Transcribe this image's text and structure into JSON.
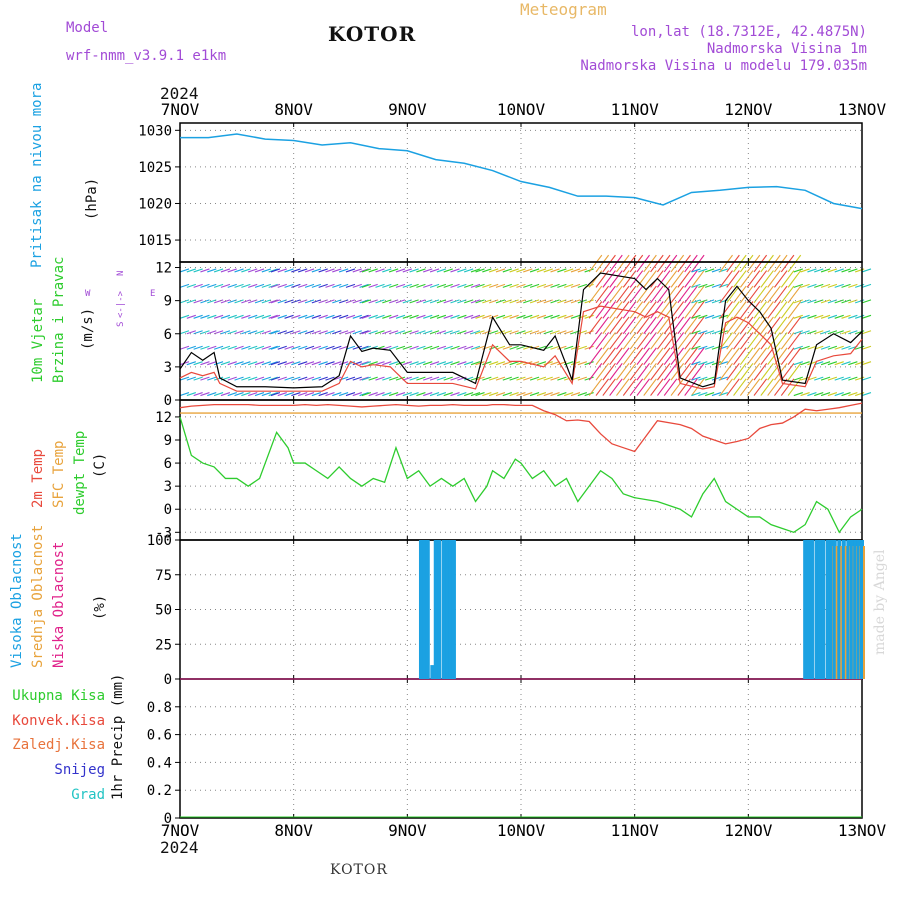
{
  "header": {
    "model_label": "Model",
    "model_name": "wrf-nmm_v3.9.1 e1km",
    "title": "KOTOR",
    "meteogram": "Meteogram",
    "lonlat": "lon,lat (18.7312E, 42.4875N)",
    "altitude": "Nadmorska Visina 1m",
    "model_altitude": "Nadmorska Visina u modelu 179.035m",
    "year_top": "2024",
    "year_bottom": "2024",
    "footer": "KOTOR",
    "credit": "made by Angel"
  },
  "colors": {
    "pressure": "#1ba1e2",
    "temp2m": "#e8493c",
    "sfc_temp": "#e8a33c",
    "dewpt": "#2ecc2e",
    "high_cloud": "#1ba1e2",
    "mid_cloud": "#e8a33c",
    "low_cloud": "#e0218a",
    "total_precip": "#2ecc2e",
    "conv_precip": "#e8493c",
    "frozen_precip": "#e8733c",
    "snow": "#3333cc",
    "hail": "#22c4c4",
    "wind_axis_label": "#a24bd6"
  },
  "panel_labels": {
    "pressure": [
      "Pritisak na nivou mora",
      "(hPa)"
    ],
    "wind": [
      "10m Vjetar",
      "Brzina i Pravac",
      "(m/s)"
    ],
    "compass": [
      "N",
      "W",
      "<-|->",
      "E",
      "S"
    ],
    "temp": [
      "2m Temp",
      "SFC Temp",
      "dewpt Temp",
      "(C)"
    ],
    "cloud": [
      "Visoka Oblacnost",
      "Srednja Oblacnost",
      "Niska Oblacnost",
      "(%)"
    ],
    "precip_legend": [
      "Ukupna Kisa",
      "Konvek.Kisa",
      "Zaledj.Kisa",
      "Snijeg",
      "Grad"
    ],
    "precip_unit": "1hr Precip (mm)"
  },
  "chart_data": [
    {
      "type": "line",
      "name": "pressure",
      "x_labels": [
        "7NOV",
        "8NOV",
        "9NOV",
        "10NOV",
        "11NOV",
        "12NOV",
        "13NOV"
      ],
      "ylim": [
        1012,
        1031
      ],
      "yticks": [
        1015,
        1020,
        1025,
        1030
      ],
      "x": [
        0,
        0.25,
        0.5,
        0.75,
        1,
        1.25,
        1.5,
        1.75,
        2,
        2.25,
        2.5,
        2.75,
        3,
        3.25,
        3.5,
        3.75,
        4,
        4.25,
        4.5,
        4.75,
        5,
        5.25,
        5.5,
        5.75,
        6
      ],
      "series": [
        {
          "values": [
            1029,
            1029,
            1029.5,
            1028.8,
            1028.6,
            1028,
            1028.3,
            1027.5,
            1027.2,
            1026,
            1025.5,
            1024.5,
            1023,
            1022.2,
            1021,
            1021,
            1020.8,
            1019.8,
            1021.5,
            1021.8,
            1022.2,
            1022.3,
            1021.8,
            1020,
            1019.3
          ]
        }
      ],
      "grid": true
    },
    {
      "type": "line",
      "name": "wind",
      "ylim": [
        0,
        12.5
      ],
      "yticks": [
        0,
        3,
        6,
        9,
        12
      ],
      "x": [
        0,
        0.1,
        0.2,
        0.3,
        0.35,
        0.5,
        0.75,
        1,
        1.25,
        1.4,
        1.5,
        1.6,
        1.7,
        1.85,
        2,
        2.2,
        2.4,
        2.6,
        2.75,
        2.9,
        3.0,
        3.2,
        3.3,
        3.45,
        3.55,
        3.7,
        4,
        4.1,
        4.2,
        4.3,
        4.4,
        4.6,
        4.7,
        4.8,
        4.9,
        5.0,
        5.1,
        5.2,
        5.3,
        5.5,
        5.6,
        5.75,
        5.9,
        6.0
      ],
      "series": [
        {
          "values": [
            2.8,
            4.3,
            3.6,
            4.3,
            2.0,
            1.2,
            1.2,
            1.1,
            1.2,
            2.2,
            5.8,
            4.4,
            4.7,
            4.5,
            2.5,
            2.5,
            2.5,
            1.5,
            7.5,
            5.0,
            5.0,
            4.5,
            5.8,
            1.8,
            10.0,
            11.5,
            11.0,
            10.0,
            11.0,
            10.0,
            2.0,
            1.2,
            1.5,
            9.0,
            10.3,
            9.0,
            8.0,
            6.5,
            1.8,
            1.5,
            5.0,
            6.0,
            5.2,
            6.2
          ]
        },
        {
          "values": [
            2.0,
            2.5,
            2.2,
            2.5,
            1.5,
            0.8,
            0.8,
            0.8,
            0.8,
            1.5,
            3.5,
            3.0,
            3.2,
            3.0,
            1.5,
            1.5,
            1.5,
            1.0,
            5.0,
            3.5,
            3.5,
            3.0,
            4.0,
            1.5,
            8.0,
            8.5,
            8.0,
            7.5,
            8.0,
            7.5,
            1.5,
            1.0,
            1.2,
            7.0,
            7.5,
            7.0,
            6.0,
            5.0,
            1.5,
            1.2,
            3.5,
            4.0,
            4.2,
            5.5
          ]
        }
      ],
      "grid": true
    },
    {
      "type": "line",
      "name": "temperature",
      "ylim": [
        -4,
        14.2
      ],
      "yticks": [
        -3,
        0,
        3,
        6,
        9,
        12
      ],
      "x": [
        0,
        0.1,
        0.2,
        0.3,
        0.4,
        0.5,
        0.6,
        0.7,
        0.75,
        0.85,
        0.95,
        1,
        1.1,
        1.2,
        1.3,
        1.4,
        1.5,
        1.6,
        1.7,
        1.8,
        1.9,
        2,
        2.1,
        2.2,
        2.3,
        2.4,
        2.5,
        2.6,
        2.7,
        2.75,
        2.85,
        2.95,
        3.0,
        3.1,
        3.2,
        3.3,
        3.4,
        3.5,
        3.6,
        3.7,
        3.8,
        3.9,
        4.0,
        4.2,
        4.4,
        4.5,
        4.6,
        4.7,
        4.8,
        4.9,
        5.0,
        5.1,
        5.2,
        5.3,
        5.4,
        5.5,
        5.6,
        5.7,
        5.8,
        5.9,
        6.0
      ],
      "series": [
        {
          "values": [
            12.5,
            12.5,
            12.5,
            12.5,
            12.5,
            12.5,
            12.5,
            12.5,
            12.5,
            12.5,
            12.5,
            12.5,
            12.5,
            12.5,
            12.5,
            12.5,
            12.5,
            12.5,
            12.5,
            12.5,
            12.5,
            12.5,
            12.5,
            12.5,
            12.5,
            12.5,
            12.5,
            12.5,
            12.5,
            12.5,
            12.5,
            12.5,
            12.5,
            12.5,
            12.5,
            12.5,
            12.5,
            12.5,
            12.5,
            12.5,
            12.5,
            12.5,
            12.5,
            12.5,
            12.5,
            12.5,
            12.5,
            12.5,
            12.5,
            12.5,
            12.5,
            12.5,
            12.5,
            12.5,
            12.5,
            12.5,
            12.5,
            12.5,
            12.5,
            12.5,
            12.5
          ]
        },
        {
          "values": [
            13.2,
            13.4,
            13.5,
            13.6,
            13.6,
            13.6,
            13.6,
            13.5,
            13.5,
            13.5,
            13.5,
            13.5,
            13.6,
            13.5,
            13.6,
            13.5,
            13.4,
            13.3,
            13.4,
            13.5,
            13.6,
            13.5,
            13.4,
            13.5,
            13.5,
            13.6,
            13.5,
            13.5,
            13.5,
            13.6,
            13.6,
            13.5,
            13.5,
            13.5,
            12.8,
            12.3,
            11.5,
            11.6,
            11.4,
            9.8,
            8.5,
            8.0,
            7.5,
            11.5,
            11.0,
            10.5,
            9.5,
            9.0,
            8.5,
            8.8,
            9.2,
            10.5,
            11.0,
            11.2,
            12.0,
            13.0,
            12.8,
            13.0,
            13.2,
            13.5,
            13.8
          ]
        },
        {
          "values": [
            12,
            7,
            6,
            5.5,
            4,
            4,
            3,
            4,
            6,
            10,
            8,
            6,
            6,
            5,
            4,
            5.5,
            4,
            3,
            4,
            3.5,
            8,
            4,
            5,
            3,
            4,
            3,
            4,
            1,
            3,
            5,
            4,
            6.5,
            6,
            4,
            5,
            3,
            4,
            1,
            3,
            5,
            4,
            2,
            1.5,
            1,
            0,
            -1,
            2,
            4,
            1,
            0,
            -1,
            -1,
            -2,
            -2.5,
            -3,
            -2,
            1,
            0,
            -3,
            -1,
            0
          ]
        }
      ],
      "grid": true
    },
    {
      "type": "bar",
      "name": "cloud_cover",
      "ylim": [
        0,
        100
      ],
      "yticks": [
        0,
        25,
        50,
        75,
        100
      ],
      "x": [
        2.12,
        2.15,
        2.18,
        2.22,
        2.25,
        2.28,
        2.32,
        2.35,
        2.38,
        2.41,
        5.5,
        5.53,
        5.56,
        5.6,
        5.63,
        5.66,
        5.7,
        5.73,
        5.76,
        5.8,
        5.84,
        5.88,
        5.91,
        5.94,
        5.97,
        6.0
      ],
      "series": [
        {
          "name": "Visoka Oblacnost",
          "values": [
            100,
            100,
            100,
            10,
            100,
            100,
            100,
            100,
            100,
            100,
            100,
            100,
            100,
            100,
            100,
            100,
            100,
            100,
            100,
            100,
            100,
            100,
            100,
            100,
            100,
            100
          ]
        }
      ],
      "grid": true
    },
    {
      "type": "line",
      "name": "precipitation",
      "ylim": [
        0,
        1.0
      ],
      "yticks": [
        0,
        0.2,
        0.4,
        0.6,
        0.8
      ],
      "x": [
        0,
        6
      ],
      "series": [
        {
          "values": [
            0,
            0
          ]
        }
      ],
      "grid": true
    }
  ]
}
